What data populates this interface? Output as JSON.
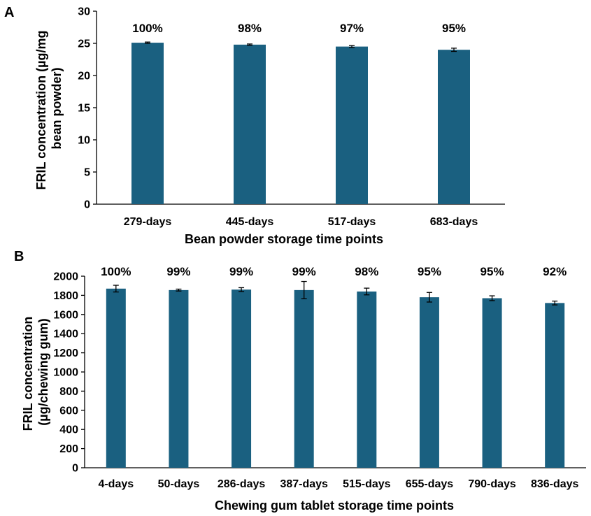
{
  "colors": {
    "bar": "#1a6080",
    "axis": "#000000",
    "errorbar": "#000000"
  },
  "chart_data": [
    {
      "type": "bar",
      "panel_label": "A",
      "categories": [
        "279-days",
        "445-days",
        "517-days",
        "683-days"
      ],
      "values": [
        25.1,
        24.8,
        24.5,
        24.0
      ],
      "errors": [
        0.1,
        0.1,
        0.15,
        0.25
      ],
      "bar_labels": [
        "100%",
        "98%",
        "97%",
        "95%"
      ],
      "ylabel_lines": [
        "FRIL concentration (µg/mg",
        "bean powder)"
      ],
      "xlabel": "Bean powder storage time points",
      "ylim": [
        0,
        30
      ],
      "yticks": [
        0,
        5,
        10,
        15,
        20,
        25,
        30
      ],
      "grid": false,
      "legend": false
    },
    {
      "type": "bar",
      "panel_label": "B",
      "categories": [
        "4-days",
        "50-days",
        "286-days",
        "387-days",
        "515-days",
        "655-days",
        "790-days",
        "836-days"
      ],
      "values": [
        1870,
        1855,
        1860,
        1855,
        1840,
        1780,
        1770,
        1720
      ],
      "errors": [
        35,
        10,
        20,
        90,
        35,
        50,
        25,
        20
      ],
      "bar_labels": [
        "100%",
        "99%",
        "99%",
        "99%",
        "98%",
        "95%",
        "95%",
        "92%"
      ],
      "ylabel_lines": [
        "FRIL concentration",
        "(µg/chewing gum)"
      ],
      "xlabel": "Chewing gum tablet storage time points",
      "ylim": [
        0,
        2000
      ],
      "yticks": [
        0,
        200,
        400,
        600,
        800,
        1000,
        1200,
        1400,
        1600,
        1800,
        2000
      ],
      "grid": false,
      "legend": false
    }
  ]
}
